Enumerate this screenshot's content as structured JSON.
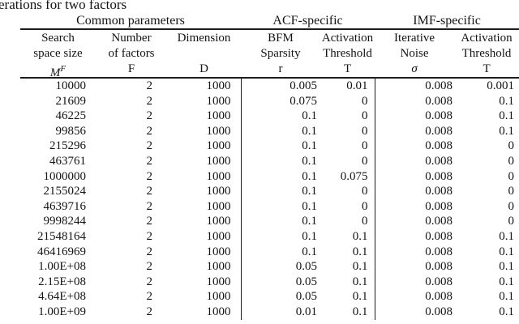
{
  "caption": "erations for two factors",
  "table": {
    "groups": [
      {
        "label": "Common parameters",
        "span": 3
      },
      {
        "label": "ACF-specific",
        "span": 2
      },
      {
        "label": "IMF-specific",
        "span": 2
      }
    ],
    "columns": [
      {
        "line1": "Search",
        "line2": "space size",
        "symbol": "M",
        "symbol_sup": "F"
      },
      {
        "line1": "Number",
        "line2": "of factors",
        "symbol": "F",
        "symbol_sup": ""
      },
      {
        "line1": "Dimension",
        "line2": "",
        "symbol": "D",
        "symbol_sup": ""
      },
      {
        "line1": "BFM",
        "line2": "Sparsity",
        "symbol": "r",
        "symbol_sup": ""
      },
      {
        "line1": "Activation",
        "line2": "Threshold",
        "symbol": "T",
        "symbol_sup": ""
      },
      {
        "line1": "Iterative",
        "line2": "Noise",
        "symbol": "σ",
        "symbol_sup": ""
      },
      {
        "line1": "Activation",
        "line2": "Threshold",
        "symbol": "T",
        "symbol_sup": ""
      }
    ],
    "rows": [
      [
        "10000",
        "2",
        "1000",
        "0.005",
        "0.01",
        "0.008",
        "0.001"
      ],
      [
        "21609",
        "2",
        "1000",
        "0.075",
        "0",
        "0.008",
        "0.1"
      ],
      [
        "46225",
        "2",
        "1000",
        "0.1",
        "0",
        "0.008",
        "0.1"
      ],
      [
        "99856",
        "2",
        "1000",
        "0.1",
        "0",
        "0.008",
        "0.1"
      ],
      [
        "215296",
        "2",
        "1000",
        "0.1",
        "0",
        "0.008",
        "0"
      ],
      [
        "463761",
        "2",
        "1000",
        "0.1",
        "0",
        "0.008",
        "0"
      ],
      [
        "1000000",
        "2",
        "1000",
        "0.1",
        "0.075",
        "0.008",
        "0"
      ],
      [
        "2155024",
        "2",
        "1000",
        "0.1",
        "0",
        "0.008",
        "0"
      ],
      [
        "4639716",
        "2",
        "1000",
        "0.1",
        "0",
        "0.008",
        "0"
      ],
      [
        "9998244",
        "2",
        "1000",
        "0.1",
        "0",
        "0.008",
        "0"
      ],
      [
        "21548164",
        "2",
        "1000",
        "0.1",
        "0.1",
        "0.008",
        "0.1"
      ],
      [
        "46416969",
        "2",
        "1000",
        "0.1",
        "0.1",
        "0.008",
        "0.1"
      ],
      [
        "1.00E+08",
        "2",
        "1000",
        "0.05",
        "0.1",
        "0.008",
        "0.1"
      ],
      [
        "2.15E+08",
        "2",
        "1000",
        "0.05",
        "0.1",
        "0.008",
        "0.1"
      ],
      [
        "4.64E+08",
        "2",
        "1000",
        "0.05",
        "0.1",
        "0.008",
        "0.1"
      ],
      [
        "1.00E+09",
        "2",
        "1000",
        "0.01",
        "0.1",
        "0.008",
        "0.1"
      ]
    ]
  },
  "colors": {
    "text": "#141414",
    "rule": "#1c1c1c",
    "background": "#ffffff"
  }
}
